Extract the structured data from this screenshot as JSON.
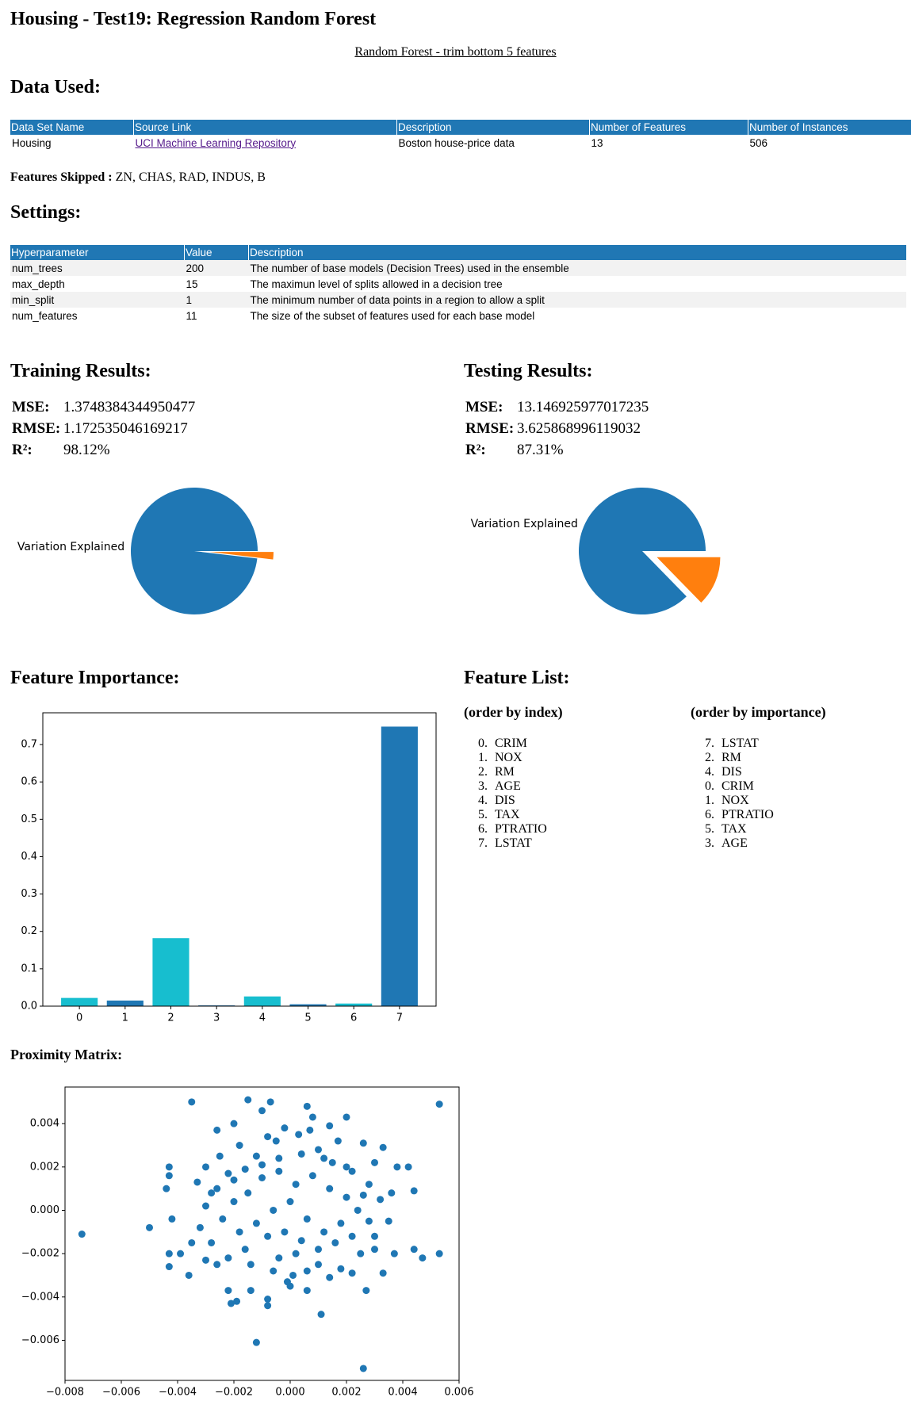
{
  "header": {
    "title": "Housing - Test19: Regression Random Forest",
    "link": "Random Forest - trim bottom 5 features"
  },
  "data_used": {
    "heading": "Data Used:",
    "table": {
      "columns": [
        "Data Set Name",
        "Source Link",
        "Description",
        "Number of Features",
        "Number of Instances"
      ],
      "rows": [
        [
          "Housing",
          "UCI Machine Learning Repository",
          "Boston house-price data",
          "13",
          "506"
        ]
      ]
    },
    "features_skipped_label": "Features Skipped :",
    "features_skipped": "ZN, CHAS, RAD, INDUS, B"
  },
  "settings": {
    "heading": "Settings:",
    "table": {
      "columns": [
        "Hyperparameter",
        "Value",
        "Description"
      ],
      "rows": [
        [
          "num_trees",
          "200",
          "The number of base models (Decision Trees) used in the ensemble"
        ],
        [
          "max_depth",
          "15",
          "The maximun level of splits allowed in a decision tree"
        ],
        [
          "min_split",
          "1",
          "The minimum number of data points in a region to allow a split"
        ],
        [
          "num_features",
          "11",
          "The size of the subset of features used for each base model"
        ]
      ]
    }
  },
  "training": {
    "heading": "Training Results:",
    "metrics": [
      {
        "label": "MSE:",
        "value": "1.3748384344950477"
      },
      {
        "label": "RMSE:",
        "value": "1.172535046169217"
      },
      {
        "label": "R²:",
        "value": "98.12%"
      }
    ]
  },
  "testing": {
    "heading": "Testing Results:",
    "metrics": [
      {
        "label": "MSE:",
        "value": "13.146925977017235"
      },
      {
        "label": "RMSE:",
        "value": "3.625868996119032"
      },
      {
        "label": "R²:",
        "value": "87.31%"
      }
    ]
  },
  "feature_importance": {
    "heading": "Feature Importance:"
  },
  "feature_list": {
    "heading": "Feature List:",
    "columns": [
      {
        "title": "(order by index)",
        "items": [
          {
            "index": "0.",
            "name": "CRIM"
          },
          {
            "index": "1.",
            "name": "NOX"
          },
          {
            "index": "2.",
            "name": "RM"
          },
          {
            "index": "3.",
            "name": "AGE"
          },
          {
            "index": "4.",
            "name": "DIS"
          },
          {
            "index": "5.",
            "name": "TAX"
          },
          {
            "index": "6.",
            "name": "PTRATIO"
          },
          {
            "index": "7.",
            "name": "LSTAT"
          }
        ]
      },
      {
        "title": "(order by importance)",
        "items": [
          {
            "index": "7.",
            "name": "LSTAT"
          },
          {
            "index": "2.",
            "name": "RM"
          },
          {
            "index": "4.",
            "name": "DIS"
          },
          {
            "index": "0.",
            "name": "CRIM"
          },
          {
            "index": "1.",
            "name": "NOX"
          },
          {
            "index": "6.",
            "name": "PTRATIO"
          },
          {
            "index": "5.",
            "name": "TAX"
          },
          {
            "index": "3.",
            "name": "AGE"
          }
        ]
      }
    ]
  },
  "proximity": {
    "heading": "Proximity Matrix:"
  },
  "chart_data": [
    {
      "type": "pie",
      "labels": [
        "Variation Explained",
        null
      ],
      "values": [
        98.12,
        1.88
      ],
      "colors": [
        "#1f77b4",
        "#ff7f0e"
      ],
      "explode": [
        0,
        0.25
      ]
    },
    {
      "type": "pie",
      "labels": [
        "Variation Explained",
        null
      ],
      "values": [
        87.31,
        12.69
      ],
      "colors": [
        "#1f77b4",
        "#ff7f0e"
      ],
      "explode": [
        0,
        0.25
      ]
    },
    {
      "type": "bar",
      "categories": [
        "0",
        "1",
        "2",
        "3",
        "4",
        "5",
        "6",
        "7"
      ],
      "values": [
        0.022,
        0.015,
        0.182,
        0.002,
        0.026,
        0.005,
        0.007,
        0.748
      ],
      "colors": [
        "#17becf",
        "#1f77b4",
        "#17becf",
        "#1f77b4",
        "#17becf",
        "#1f77b4",
        "#17becf",
        "#1f77b4"
      ],
      "ylim": [
        0,
        0.785
      ],
      "yticks": [
        {
          "value": 0,
          "label": "0.0"
        },
        0.1,
        0.2,
        0.3,
        0.4,
        0.5,
        0.6,
        0.7
      ]
    },
    {
      "type": "scatter",
      "color": "#1f77b4",
      "x": [
        -0.0074,
        -0.005,
        -0.0035,
        -0.0015,
        -0.0007,
        0.0053,
        0.0026,
        -0.0012,
        0.0011,
        -0.0043,
        -0.0043,
        -0.0044,
        -0.0042,
        -0.0043,
        -0.0043,
        -0.0039,
        -0.0036,
        0.0042,
        0.0038,
        0.0044,
        0.0033,
        0.0026,
        0.0044,
        0.0047,
        0.0053,
        0.0037,
        0.0033,
        -0.0021,
        -0.0019,
        -0.0008,
        -0.0008,
        0.0,
        -0.0001,
        0.0006,
        -0.0022,
        -0.0014,
        0.0027,
        -0.0026,
        -0.002,
        -0.001,
        0.0006,
        0.0008,
        0.002,
        0.0014,
        -0.003,
        -0.0025,
        -0.0018,
        -0.0012,
        -0.0005,
        0.0003,
        0.001,
        0.0015,
        0.0022,
        0.0028,
        0.0032,
        0.0035,
        0.003,
        0.0025,
        0.0018,
        0.001,
        0.0002,
        -0.0006,
        -0.0014,
        -0.0022,
        -0.0028,
        -0.0032,
        -0.003,
        -0.0026,
        -0.002,
        -0.0015,
        -0.001,
        -0.0004,
        0.0002,
        0.0008,
        0.0014,
        0.002,
        0.0024,
        0.0018,
        0.0012,
        0.0006,
        0.0,
        -0.0006,
        -0.0012,
        -0.0018,
        -0.0024,
        -0.002,
        -0.0008,
        -0.0002,
        0.0004,
        0.001,
        0.0016,
        0.0022,
        0.0028,
        0.0026,
        0.002,
        0.0012,
        0.0004,
        -0.0004,
        -0.001,
        -0.0016,
        -0.0022,
        -0.0028,
        -0.0026,
        -0.0016,
        -0.0004,
        0.0006,
        0.0014,
        0.0022,
        0.003,
        0.0036,
        -0.0033,
        -0.0035,
        0.0007,
        -0.0002,
        0.0017,
        -0.0008,
        0.003,
        -0.003,
        0.0001
      ],
      "y": [
        -0.0011,
        -0.0008,
        0.005,
        0.0051,
        0.005,
        0.0049,
        -0.0073,
        -0.0061,
        -0.0048,
        0.002,
        0.0016,
        0.001,
        -0.0004,
        -0.002,
        -0.0026,
        -0.002,
        -0.003,
        0.002,
        0.002,
        0.0009,
        0.0029,
        0.0031,
        -0.0018,
        -0.0022,
        -0.002,
        -0.002,
        -0.0029,
        -0.0043,
        -0.0042,
        -0.0044,
        -0.0041,
        -0.0035,
        -0.0033,
        -0.0037,
        -0.0037,
        -0.0037,
        -0.0037,
        0.0037,
        0.004,
        0.0046,
        0.0048,
        0.0043,
        0.0043,
        0.0039,
        0.002,
        0.0025,
        0.003,
        0.0025,
        0.0032,
        0.0035,
        0.0028,
        0.0022,
        0.0018,
        0.0012,
        0.0005,
        -0.0005,
        -0.0012,
        -0.002,
        -0.0027,
        -0.0025,
        -0.002,
        -0.0028,
        -0.0025,
        -0.0022,
        -0.0015,
        -0.0008,
        0.0002,
        0.001,
        0.0014,
        0.0008,
        0.0015,
        0.0018,
        0.0012,
        0.0016,
        0.001,
        0.0006,
        0.0,
        -0.0006,
        -0.001,
        -0.0004,
        0.0004,
        0.0,
        -0.0006,
        -0.001,
        -0.0004,
        0.0004,
        -0.0012,
        -0.001,
        -0.0014,
        -0.0018,
        -0.0015,
        -0.0012,
        -0.0005,
        0.0007,
        0.002,
        0.0024,
        0.0026,
        0.0024,
        0.0021,
        0.0019,
        0.0017,
        0.0008,
        -0.0025,
        -0.0018,
        -0.0022,
        -0.0028,
        -0.0031,
        -0.0029,
        -0.0018,
        0.0008,
        0.0013,
        -0.0015,
        0.0037,
        0.0038,
        0.0032,
        0.0034,
        0.0022,
        -0.0023,
        -0.003
      ],
      "xlim": [
        -0.008,
        0.006
      ],
      "xticks": [
        {
          "value": -0.008,
          "label": "−0.008"
        },
        {
          "value": -0.006,
          "label": "−0.006"
        },
        {
          "value": -0.004,
          "label": "−0.004"
        },
        {
          "value": -0.002,
          "label": "−0.002"
        },
        {
          "value": 0,
          "label": "0.000"
        },
        0.002,
        0.004,
        0.006
      ],
      "ylim": [
        -0.00785,
        0.00569
      ],
      "yticks": [
        {
          "value": -0.006,
          "label": "−0.006"
        },
        {
          "value": -0.004,
          "label": "−0.004"
        },
        {
          "value": -0.002,
          "label": "−0.002"
        },
        {
          "value": 0,
          "label": "0.000"
        },
        0.002,
        0.004
      ]
    }
  ]
}
